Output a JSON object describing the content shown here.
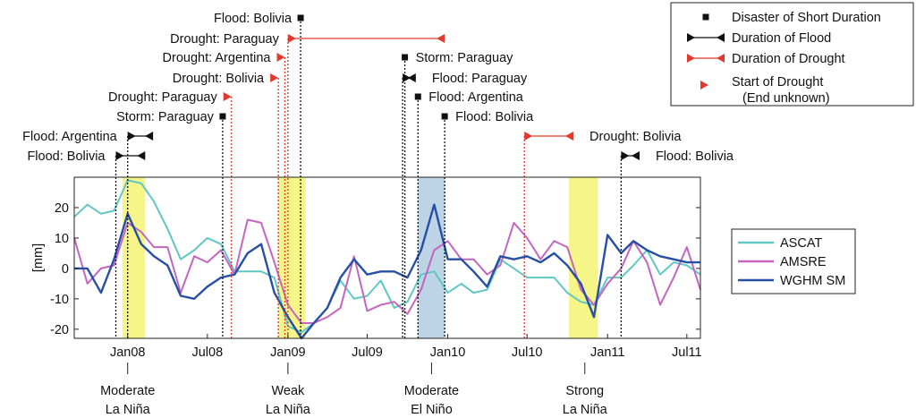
{
  "chart_data": {
    "type": "line",
    "ylabel": "[mm]",
    "ylim": [
      -23,
      30
    ],
    "xlim": [
      "2007-09-01",
      "2011-08-01"
    ],
    "y_ticks": [
      20,
      10,
      0,
      -10,
      -20
    ],
    "x_ticks": [
      {
        "date": "2008-01-01",
        "label": "Jan08"
      },
      {
        "date": "2008-07-01",
        "label": "Jul08"
      },
      {
        "date": "2009-01-01",
        "label": "Jan09"
      },
      {
        "date": "2009-07-01",
        "label": "Jul09"
      },
      {
        "date": "2010-01-01",
        "label": "Jan10"
      },
      {
        "date": "2010-07-01",
        "label": "Jul10"
      },
      {
        "date": "2011-01-01",
        "label": "Jan11"
      },
      {
        "date": "2011-07-01",
        "label": "Jul11"
      }
    ],
    "x": [
      "2007-09",
      "2007-10",
      "2007-11",
      "2007-12",
      "2008-01",
      "2008-02",
      "2008-03",
      "2008-04",
      "2008-05",
      "2008-06",
      "2008-07",
      "2008-08",
      "2008-09",
      "2008-10",
      "2008-11",
      "2008-12",
      "2009-01",
      "2009-02",
      "2009-03",
      "2009-04",
      "2009-05",
      "2009-06",
      "2009-07",
      "2009-08",
      "2009-09",
      "2009-10",
      "2009-11",
      "2009-12",
      "2010-01",
      "2010-02",
      "2010-03",
      "2010-04",
      "2010-05",
      "2010-06",
      "2010-07",
      "2010-08",
      "2010-09",
      "2010-10",
      "2010-11",
      "2010-12",
      "2011-01",
      "2011-02",
      "2011-03",
      "2011-04",
      "2011-05",
      "2011-06",
      "2011-07",
      "2011-08"
    ],
    "series": [
      {
        "name": "ASCAT",
        "color": "#5fc7c4",
        "values": [
          17,
          21,
          18,
          19,
          29,
          28,
          22,
          13,
          3,
          6,
          10,
          8,
          -1,
          -1,
          -1,
          -3,
          -19,
          -21,
          -18,
          -13,
          -4,
          -10,
          -9,
          -4,
          -13,
          -11,
          -2,
          -1,
          -8,
          -5,
          -8,
          -7,
          3,
          0,
          -3,
          -3,
          -3,
          -8,
          -11,
          -12,
          -3,
          -3,
          1,
          6,
          -2,
          2,
          1,
          -2
        ]
      },
      {
        "name": "AMSRE",
        "color": "#c466bf",
        "values": [
          10,
          -5,
          0,
          1,
          15,
          12,
          7,
          7,
          -8,
          4,
          2,
          6,
          -2,
          16,
          15,
          2,
          -12,
          -18,
          -18,
          -16,
          -13,
          4,
          -14,
          -12,
          -11,
          -15,
          -7,
          6,
          9,
          3,
          3,
          -2,
          1,
          15,
          10,
          3,
          9,
          7,
          -7,
          -12,
          -5,
          0,
          9,
          2,
          -12,
          -3,
          7,
          -7
        ]
      },
      {
        "name": "WGHM SM",
        "color": "#274fa5",
        "values": [
          0,
          0,
          -8,
          3,
          18,
          8,
          4,
          1,
          -9,
          -10,
          -6,
          -3,
          -2,
          5,
          8,
          -8,
          -16,
          -23,
          -18,
          -13,
          -3,
          3,
          -2,
          -1,
          -1,
          -3,
          6,
          21,
          3,
          3,
          -1,
          -6,
          4,
          3,
          4,
          2,
          5,
          1,
          -5,
          -16,
          11,
          5,
          9,
          6,
          4,
          3,
          2,
          2
        ]
      }
    ],
    "legend": {
      "placement": "right",
      "entries": [
        "ASCAT",
        "AMSRE",
        "WGHM SM"
      ]
    },
    "shaded_periods": [
      {
        "start": "2007-12-20",
        "end": "2008-02-10",
        "color": "#f5f588"
      },
      {
        "start": "2008-12-10",
        "end": "2009-02-10",
        "color": "#f5f588"
      },
      {
        "start": "2009-10-25",
        "end": "2009-12-25",
        "color": "#bcd4e6"
      },
      {
        "start": "2010-10-05",
        "end": "2010-12-10",
        "color": "#f5f588"
      }
    ],
    "enso_labels": [
      {
        "date": "2008-01-01",
        "line1": "Moderate",
        "line2": "La Niña"
      },
      {
        "date": "2009-01-01",
        "line1": "Weak",
        "line2": "La Niña"
      },
      {
        "date": "2009-11-25",
        "line1": "Moderate",
        "line2": "El Niño"
      },
      {
        "date": "2010-11-10",
        "line1": "Strong",
        "line2": "La Niña"
      }
    ],
    "events": [
      {
        "label": "Flood: Bolivia",
        "kind": "flood",
        "start": "2007-12-05",
        "end": "2008-02-10",
        "line": "2007-12-05"
      },
      {
        "label": "Flood: Argentina",
        "kind": "flood",
        "start": "2008-01-01",
        "end": "2008-02-28",
        "line": "2008-01-01"
      },
      {
        "label": "Storm: Paraguay",
        "kind": "short",
        "start": "2008-08-05",
        "line": "2008-08-05"
      },
      {
        "label": "Drought: Paraguay",
        "kind": "drought_open",
        "start": "2008-08-25",
        "line": "2008-08-25"
      },
      {
        "label": "Drought: Bolivia",
        "kind": "drought_open",
        "start": "2008-12-10",
        "line": "2008-12-10"
      },
      {
        "label": "Drought: Argentina",
        "kind": "drought_open",
        "start": "2008-12-25",
        "line": "2008-12-25"
      },
      {
        "label": "Drought: Paraguay",
        "kind": "drought",
        "start": "2009-01-01",
        "end": "2009-12-25",
        "line": "2009-01-01"
      },
      {
        "label": "Flood: Bolivia",
        "kind": "short",
        "start": "2009-01-30",
        "line": "2009-01-30"
      },
      {
        "label": "Storm: Paraguay",
        "kind": "short",
        "start": "2009-09-25",
        "line": "2009-09-25"
      },
      {
        "label": "Flood: Paraguay",
        "kind": "flood",
        "start": "2009-09-20",
        "end": "2009-10-20",
        "line": "2009-09-20"
      },
      {
        "label": "Flood: Argentina",
        "kind": "short",
        "start": "2009-10-25",
        "line": "2009-10-25"
      },
      {
        "label": "Flood: Bolivia",
        "kind": "short",
        "start": "2009-12-25",
        "line": "2009-12-25"
      },
      {
        "label": "Drought: Bolivia",
        "kind": "drought",
        "start": "2010-06-25",
        "end": "2010-10-15",
        "line": "2010-06-25"
      },
      {
        "label": "Flood: Bolivia",
        "kind": "flood",
        "start": "2011-02-01",
        "end": "2011-03-15",
        "line": "2011-02-01"
      }
    ]
  },
  "legend_top": {
    "entries": [
      {
        "label": "Disaster of Short Duration",
        "symbol": "square"
      },
      {
        "label": "Duration of Flood",
        "symbol": "flood"
      },
      {
        "label": "Duration of Drought",
        "symbol": "drought"
      },
      {
        "label": "Start of Drought",
        "label2": "(End unknown)",
        "symbol": "drought_start"
      }
    ]
  }
}
